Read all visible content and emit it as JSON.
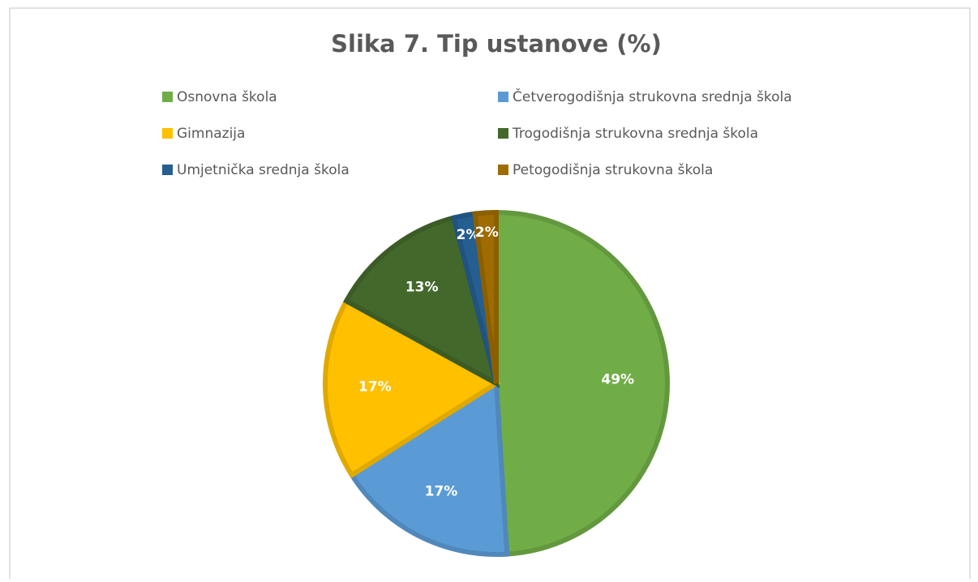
{
  "chart_data": {
    "type": "pie",
    "title": "Slika 7. Tip ustanove (%)",
    "categories": [
      "Osnovna škola",
      "Četverogodišnja strukovna srednja škola",
      "Gimnazija",
      "Trogodišnja strukovna srednja škola",
      "Umjetnička srednja škola",
      "Petogodišnja strukovna škola"
    ],
    "values": [
      49,
      17,
      17,
      13,
      2,
      2
    ],
    "value_labels": [
      "49%",
      "17%",
      "17%",
      "13%",
      "2%",
      "2%"
    ],
    "colors": [
      "#70ad47",
      "#5b9bd5",
      "#ffc000",
      "#43682b",
      "#255e91",
      "#9e6c00"
    ],
    "legend": "top"
  }
}
